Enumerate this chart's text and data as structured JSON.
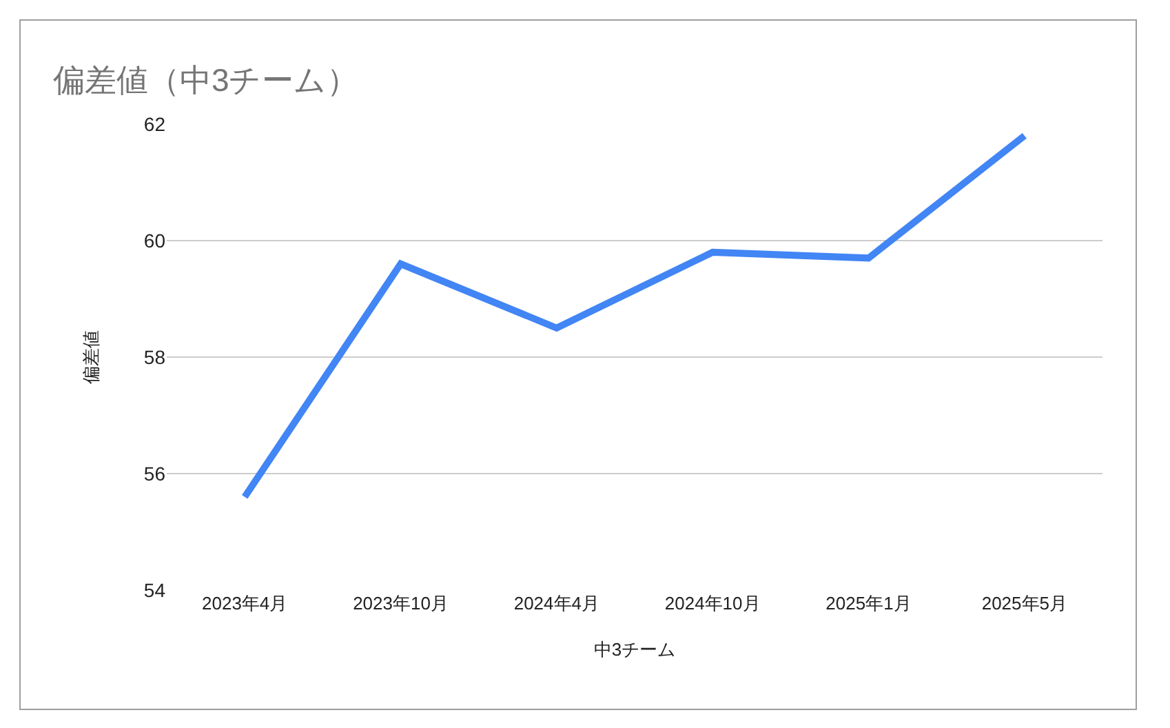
{
  "chart_data": {
    "type": "line",
    "title": "偏差値（中3チーム）",
    "xlabel": "中3チーム",
    "ylabel": "偏差値",
    "categories": [
      "2023年4月",
      "2023年10月",
      "2024年4月",
      "2024年10月",
      "2025年1月",
      "2025年5月"
    ],
    "series": [
      {
        "color": "#4285f4",
        "values": [
          55.6,
          59.6,
          58.5,
          59.8,
          59.7,
          61.8
        ]
      }
    ],
    "ylim": [
      54,
      62
    ],
    "yticks": [
      54,
      56,
      58,
      60,
      62
    ],
    "grid": "y",
    "line_style": "solid"
  }
}
